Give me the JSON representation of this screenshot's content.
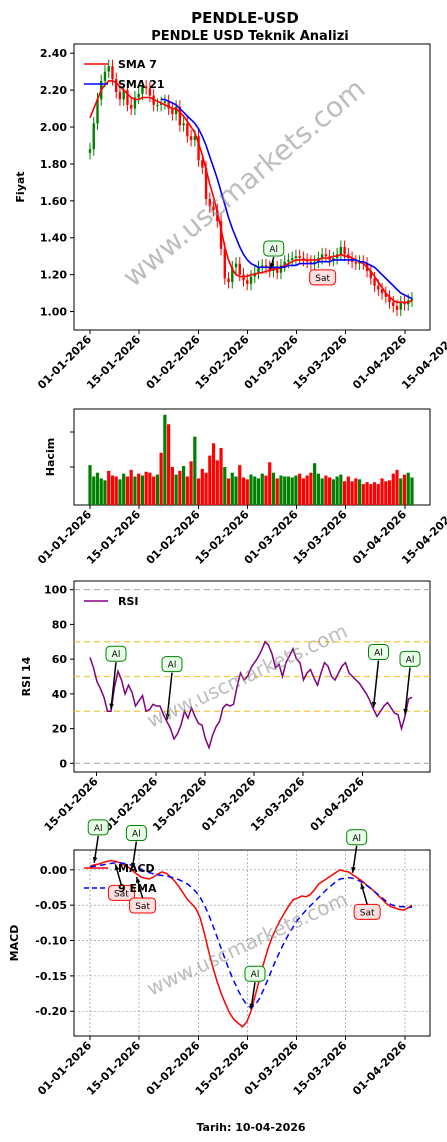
{
  "header": {
    "title": "PENDLE-USD",
    "subtitle": "PENDLE USD Teknik Analizi",
    "footer": "Tarih: 10-04-2026",
    "watermark": "www.uscmarkets.com"
  },
  "colors": {
    "up": "#008000",
    "down": "#ff0000",
    "sma7": "#ff0000",
    "sma21": "#0000ff",
    "rsi": "#800080",
    "macd": "#ff0000",
    "signal": "#0000ff",
    "buy": "#008000",
    "sell": "#ff0000"
  },
  "chart_data": [
    {
      "type": "line",
      "panel": "price",
      "ylabel": "Fiyat",
      "ylim": [
        0.9,
        2.45
      ],
      "yticks": [
        "1.00",
        "1.20",
        "1.40",
        "1.60",
        "1.80",
        "2.00",
        "2.20",
        "2.40"
      ],
      "xticks": [
        "01-01-2026",
        "15-01-2026",
        "01-02-2026",
        "15-02-2026",
        "01-03-2026",
        "15-03-2026",
        "01-04-2026",
        "15-04-2026"
      ],
      "legend": "top-left",
      "candles_close": [
        1.88,
        2.02,
        2.15,
        2.25,
        2.3,
        2.33,
        2.26,
        2.19,
        2.15,
        2.2,
        2.12,
        2.1,
        2.16,
        2.18,
        2.22,
        2.21,
        2.17,
        2.12,
        2.12,
        2.13,
        2.14,
        2.1,
        2.07,
        2.11,
        2.01,
        2.02,
        1.95,
        1.93,
        1.95,
        1.82,
        1.78,
        1.61,
        1.57,
        1.55,
        1.49,
        1.34,
        1.18,
        1.16,
        1.24,
        1.26,
        1.2,
        1.17,
        1.15,
        1.19,
        1.21,
        1.24,
        1.25,
        1.24,
        1.22,
        1.24,
        1.21,
        1.25,
        1.27,
        1.28,
        1.29,
        1.3,
        1.29,
        1.28,
        1.27,
        1.26,
        1.27,
        1.29,
        1.31,
        1.3,
        1.28,
        1.29,
        1.31,
        1.35,
        1.31,
        1.29,
        1.27,
        1.26,
        1.27,
        1.26,
        1.22,
        1.18,
        1.14,
        1.12,
        1.1,
        1.08,
        1.05,
        1.03,
        1.01,
        1.05,
        1.04,
        1.06,
        1.07
      ],
      "series": [
        {
          "name": "SMA 7",
          "values": [
            2.05,
            2.1,
            2.15,
            2.2,
            2.23,
            2.25,
            2.25,
            2.24,
            2.22,
            2.2,
            2.18,
            2.16,
            2.15,
            2.15,
            2.16,
            2.16,
            2.16,
            2.15,
            2.14,
            2.13,
            2.12,
            2.11,
            2.1,
            2.1,
            2.08,
            2.06,
            2.03,
            2.0,
            1.97,
            1.91,
            1.85,
            1.77,
            1.69,
            1.62,
            1.54,
            1.45,
            1.35,
            1.28,
            1.23,
            1.2,
            1.19,
            1.19,
            1.19,
            1.2,
            1.2,
            1.21,
            1.21,
            1.22,
            1.22,
            1.23,
            1.23,
            1.24,
            1.25,
            1.26,
            1.27,
            1.28,
            1.28,
            1.28,
            1.28,
            1.28,
            1.28,
            1.28,
            1.29,
            1.29,
            1.29,
            1.3,
            1.3,
            1.31,
            1.3,
            1.3,
            1.29,
            1.28,
            1.27,
            1.26,
            1.24,
            1.22,
            1.19,
            1.16,
            1.13,
            1.1,
            1.08,
            1.06,
            1.05,
            1.05,
            1.05,
            1.05,
            1.06
          ]
        },
        {
          "name": "SMA 21",
          "values": [
            null,
            null,
            null,
            null,
            null,
            null,
            null,
            null,
            null,
            null,
            null,
            null,
            null,
            null,
            null,
            null,
            null,
            null,
            null,
            2.15,
            2.15,
            2.14,
            2.13,
            2.12,
            2.1,
            2.08,
            2.06,
            2.04,
            2.02,
            1.99,
            1.95,
            1.9,
            1.84,
            1.78,
            1.72,
            1.65,
            1.58,
            1.51,
            1.45,
            1.4,
            1.35,
            1.31,
            1.28,
            1.26,
            1.25,
            1.24,
            1.24,
            1.24,
            1.24,
            1.24,
            1.24,
            1.24,
            1.24,
            1.25,
            1.25,
            1.25,
            1.26,
            1.26,
            1.26,
            1.26,
            1.26,
            1.27,
            1.27,
            1.27,
            1.27,
            1.28,
            1.28,
            1.28,
            1.28,
            1.28,
            1.28,
            1.28,
            1.27,
            1.27,
            1.26,
            1.25,
            1.24,
            1.22,
            1.2,
            1.18,
            1.16,
            1.14,
            1.12,
            1.1,
            1.09,
            1.08,
            1.07
          ]
        }
      ],
      "signals": [
        {
          "label": "Al",
          "kind": "buy",
          "index": 48
        },
        {
          "label": "Sat",
          "kind": "sell",
          "index": 60
        }
      ]
    },
    {
      "type": "bar",
      "panel": "volume",
      "ylabel": "Hacim",
      "xticks": [
        "01-01-2026",
        "15-01-2026",
        "01-02-2026",
        "15-02-2026",
        "01-03-2026",
        "15-03-2026",
        "01-04-2026",
        "15-04-2026"
      ],
      "values": [
        0.42,
        0.3,
        0.34,
        0.28,
        0.26,
        0.36,
        0.31,
        0.3,
        0.27,
        0.33,
        0.3,
        0.37,
        0.3,
        0.33,
        0.31,
        0.35,
        0.34,
        0.3,
        0.32,
        0.55,
        0.95,
        0.85,
        0.4,
        0.32,
        0.36,
        0.41,
        0.3,
        0.46,
        0.72,
        0.28,
        0.38,
        0.34,
        0.52,
        0.65,
        0.47,
        0.6,
        0.4,
        0.28,
        0.34,
        0.3,
        0.42,
        0.29,
        0.27,
        0.32,
        0.3,
        0.28,
        0.33,
        0.31,
        0.45,
        0.34,
        0.28,
        0.31,
        0.3,
        0.3,
        0.29,
        0.31,
        0.33,
        0.28,
        0.31,
        0.34,
        0.44,
        0.33,
        0.28,
        0.31,
        0.29,
        0.27,
        0.3,
        0.32,
        0.25,
        0.3,
        0.25,
        0.28,
        0.27,
        0.22,
        0.24,
        0.22,
        0.24,
        0.22,
        0.28,
        0.25,
        0.26,
        0.33,
        0.37,
        0.28,
        0.32,
        0.34,
        0.29
      ],
      "up": [
        true,
        true,
        true,
        true,
        true,
        false,
        false,
        false,
        true,
        true,
        false,
        false,
        true,
        false,
        true,
        false,
        false,
        false,
        true,
        false,
        true,
        false,
        false,
        true,
        false,
        true,
        false,
        false,
        true,
        false,
        false,
        false,
        false,
        false,
        false,
        false,
        true,
        false,
        true,
        true,
        false,
        false,
        false,
        true,
        true,
        true,
        true,
        false,
        false,
        true,
        false,
        true,
        true,
        true,
        true,
        true,
        false,
        false,
        false,
        false,
        true,
        true,
        true,
        false,
        false,
        true,
        true,
        true,
        false,
        false,
        false,
        false,
        true,
        false,
        false,
        false,
        false,
        false,
        false,
        false,
        false,
        false,
        false,
        true,
        false,
        true,
        true
      ]
    },
    {
      "type": "line",
      "panel": "rsi",
      "ylabel": "RSI 14",
      "ylim": [
        -5,
        105
      ],
      "yticks": [
        "0",
        "20",
        "40",
        "60",
        "80",
        "100"
      ],
      "xticks": [
        "15-01-2026",
        "01-02-2026",
        "15-02-2026",
        "01-03-2026",
        "15-03-2026",
        "01-04-2026"
      ],
      "reference_lines": [
        0,
        30,
        50,
        70,
        100
      ],
      "legend": "top-left",
      "series": [
        {
          "name": "RSI",
          "values": [
            61,
            55,
            47,
            43,
            38,
            30,
            30,
            44,
            53,
            48,
            40,
            45,
            41,
            33,
            36,
            39,
            30,
            31,
            34,
            33,
            33,
            28,
            24,
            20,
            14,
            17,
            22,
            30,
            26,
            32,
            27,
            23,
            22,
            14,
            9,
            16,
            21,
            24,
            32,
            34,
            33,
            34,
            44,
            52,
            48,
            50,
            55,
            58,
            61,
            65,
            70,
            68,
            63,
            55,
            57,
            50,
            58,
            62,
            66,
            60,
            58,
            48,
            52,
            54,
            49,
            45,
            52,
            58,
            56,
            50,
            48,
            52,
            56,
            58,
            52,
            50,
            48,
            46,
            43,
            40,
            36,
            31,
            27,
            30,
            33,
            35,
            32,
            29,
            28,
            20,
            27,
            37,
            38
          ]
        }
      ],
      "signals": [
        {
          "label": "Al",
          "kind": "buy",
          "index": 6
        },
        {
          "label": "Al",
          "kind": "buy",
          "index": 22
        },
        {
          "label": "Al",
          "kind": "buy",
          "index": 81
        },
        {
          "label": "Al",
          "kind": "buy",
          "index": 90
        }
      ]
    },
    {
      "type": "line",
      "panel": "macd",
      "ylabel": "MACD",
      "ylim": [
        -0.235,
        0.028
      ],
      "yticks": [
        "0.00",
        "-0.05",
        "-0.10",
        "-0.15",
        "-0.20"
      ],
      "xticks": [
        "01-01-2026",
        "15-01-2026",
        "01-02-2026",
        "15-02-2026",
        "01-03-2026",
        "15-03-2026",
        "01-04-2026"
      ],
      "legend": "top-left",
      "series": [
        {
          "name": "MACD",
          "values": [
            0.005,
            0.007,
            0.008,
            0.01,
            0.012,
            0.013,
            0.012,
            0.01,
            0.007,
            0.004,
            -0.001,
            -0.006,
            -0.01,
            -0.012,
            -0.013,
            -0.01,
            -0.006,
            -0.003,
            -0.005,
            -0.01,
            -0.016,
            -0.024,
            -0.033,
            -0.042,
            -0.048,
            -0.055,
            -0.068,
            -0.09,
            -0.115,
            -0.138,
            -0.158,
            -0.175,
            -0.19,
            -0.203,
            -0.212,
            -0.217,
            -0.222,
            -0.215,
            -0.2,
            -0.178,
            -0.155,
            -0.132,
            -0.112,
            -0.095,
            -0.082,
            -0.07,
            -0.06,
            -0.05,
            -0.042,
            -0.04,
            -0.037,
            -0.038,
            -0.035,
            -0.028,
            -0.02,
            -0.016,
            -0.012,
            -0.008,
            -0.004,
            0.0,
            -0.002,
            -0.003,
            -0.007,
            -0.011,
            -0.015,
            -0.02,
            -0.025,
            -0.03,
            -0.036,
            -0.042,
            -0.048,
            -0.052,
            -0.054,
            -0.056,
            -0.057,
            -0.054,
            -0.05
          ]
        },
        {
          "name": "9 EMA",
          "values": [
            0.004,
            0.005,
            0.006,
            0.007,
            0.008,
            0.009,
            0.01,
            0.01,
            0.009,
            0.008,
            0.006,
            0.003,
            0.001,
            -0.002,
            -0.004,
            -0.006,
            -0.007,
            -0.008,
            -0.009,
            -0.01,
            -0.012,
            -0.014,
            -0.017,
            -0.02,
            -0.025,
            -0.031,
            -0.039,
            -0.05,
            -0.063,
            -0.079,
            -0.095,
            -0.112,
            -0.128,
            -0.144,
            -0.158,
            -0.171,
            -0.182,
            -0.191,
            -0.195,
            -0.191,
            -0.182,
            -0.169,
            -0.155,
            -0.14,
            -0.126,
            -0.113,
            -0.101,
            -0.09,
            -0.08,
            -0.071,
            -0.064,
            -0.057,
            -0.051,
            -0.045,
            -0.039,
            -0.033,
            -0.027,
            -0.022,
            -0.017,
            -0.013,
            -0.012,
            -0.011,
            -0.012,
            -0.014,
            -0.017,
            -0.021,
            -0.025,
            -0.03,
            -0.035,
            -0.04,
            -0.045,
            -0.049,
            -0.051,
            -0.052,
            -0.052,
            -0.053,
            -0.053
          ]
        }
      ],
      "signals": [
        {
          "label": "Al",
          "kind": "buy",
          "index": 1
        },
        {
          "label": "Sat",
          "kind": "sell",
          "index": 6
        },
        {
          "label": "Al",
          "kind": "buy",
          "index": 10
        },
        {
          "label": "Sat",
          "kind": "sell",
          "index": 11
        },
        {
          "label": "Al",
          "kind": "buy",
          "index": 38
        },
        {
          "label": "Al",
          "kind": "buy",
          "index": 62
        },
        {
          "label": "Sat",
          "kind": "sell",
          "index": 64
        }
      ]
    }
  ]
}
